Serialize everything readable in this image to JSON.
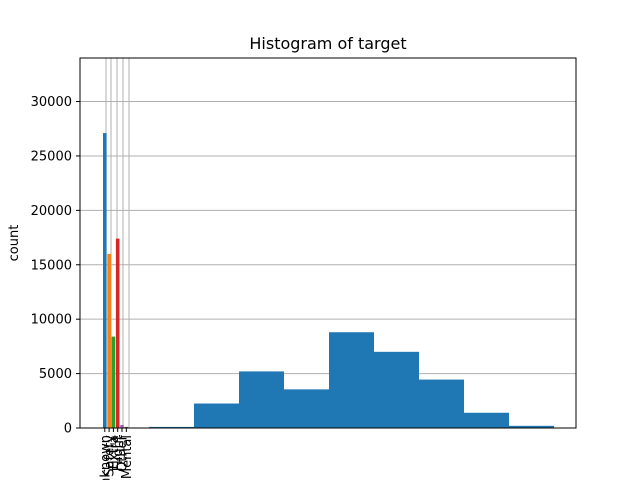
{
  "chart_data": {
    "type": "bar",
    "title": "Histogram of target",
    "xlabel": "",
    "ylabel": "count",
    "ylim": [
      0,
      34000
    ],
    "yticks": [
      0,
      5000,
      10000,
      15000,
      20000,
      25000,
      30000
    ],
    "grid": true,
    "categorical_series": {
      "categories": [
        "Unknown",
        "Safety",
        "Extra",
        "Flight",
        "Other",
        "Mental"
      ],
      "values": [
        27100,
        16000,
        8400,
        17400,
        280,
        100
      ],
      "colors": [
        "#1f77b4",
        "#ff7f0e",
        "#2ca02c",
        "#d62728",
        "#9467bd",
        "#8c564b"
      ]
    },
    "histogram_series": {
      "color": "#1f77b4",
      "bins": [
        {
          "start": 0,
          "end": 1,
          "value": 100
        },
        {
          "start": 1,
          "end": 2,
          "value": 2250
        },
        {
          "start": 2,
          "end": 3,
          "value": 5200
        },
        {
          "start": 3,
          "end": 4,
          "value": 3550
        },
        {
          "start": 4,
          "end": 5,
          "value": 8800
        },
        {
          "start": 5,
          "end": 6,
          "value": 7000
        },
        {
          "start": 6,
          "end": 7,
          "value": 4450
        },
        {
          "start": 7,
          "end": 8,
          "value": 1400
        },
        {
          "start": 8,
          "end": 9,
          "value": 200
        }
      ]
    }
  }
}
